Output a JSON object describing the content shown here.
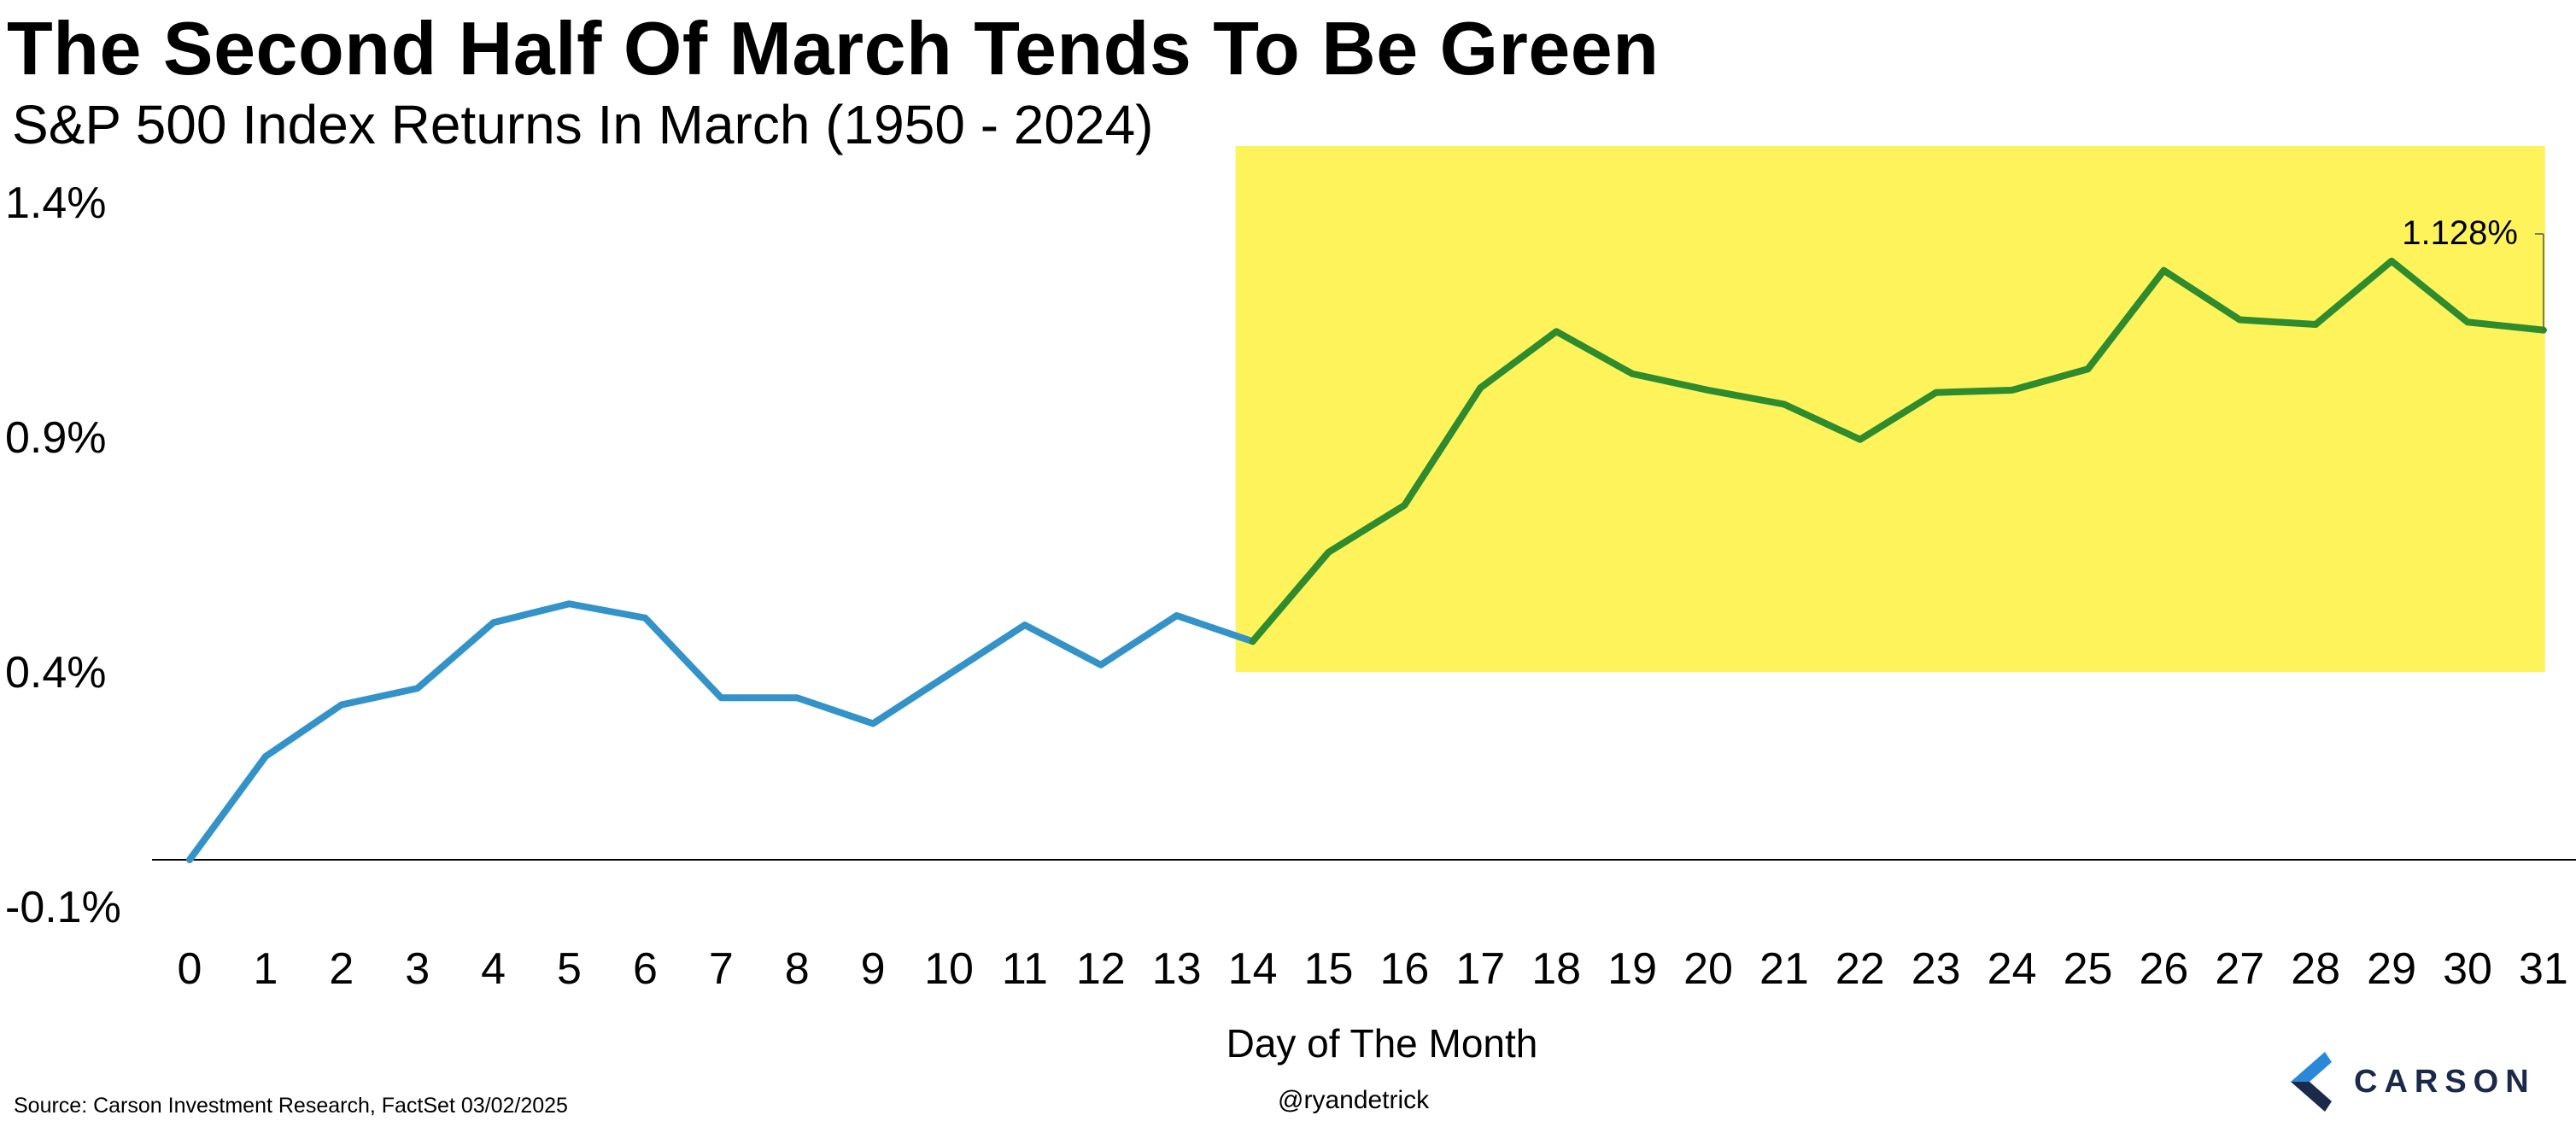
{
  "title": "The Second Half Of March Tends To Be Green",
  "subtitle": "S&P 500 Index Returns In March (1950 - 2024)",
  "source": "Source: Carson Investment Research, FactSet 03/02/2025",
  "handle": "@ryandetrick",
  "logo_text": "CARSON",
  "colors": {
    "first_half_line": "#3393c9",
    "second_half_line": "#2e8b2e",
    "highlight": "#fff35c",
    "logo_navy": "#1b2a4a",
    "logo_blue": "#2a88d8"
  },
  "chart_data": {
    "type": "line",
    "xlabel": "Day of The Month",
    "ylabel": "",
    "x": [
      0,
      1,
      2,
      3,
      4,
      5,
      6,
      7,
      8,
      9,
      10,
      11,
      12,
      13,
      14,
      15,
      16,
      17,
      18,
      19,
      20,
      21,
      22,
      23,
      24,
      25,
      26,
      27,
      28,
      29,
      30,
      31
    ],
    "x_ticks": [
      "0",
      "1",
      "2",
      "3",
      "4",
      "5",
      "6",
      "7",
      "8",
      "9",
      "10",
      "11",
      "12",
      "13",
      "14",
      "15",
      "16",
      "17",
      "18",
      "19",
      "20",
      "21",
      "22",
      "23",
      "24",
      "25",
      "26",
      "27",
      "28",
      "29",
      "30",
      "31"
    ],
    "series": [
      {
        "values": [
          0.0,
          0.22,
          0.33,
          0.365,
          0.505,
          0.545,
          0.515,
          0.345,
          0.345,
          0.29,
          0.395,
          0.5,
          0.415,
          0.52,
          0.465,
          0.655,
          0.755,
          1.005,
          1.125,
          1.035,
          1.0,
          0.97,
          0.895,
          0.995,
          1.0,
          1.045,
          1.255,
          1.15,
          1.14,
          1.275,
          1.145,
          1.128
        ]
      }
    ],
    "y_ticks": [
      "1.4%",
      "0.9%",
      "0.4%",
      "-0.1%"
    ],
    "y_tick_values": [
      1.4,
      0.9,
      0.4,
      -0.1
    ],
    "ylim": [
      -0.1,
      1.4
    ],
    "zero_line": 0,
    "highlight_region": {
      "x_from": 14,
      "x_to": 31,
      "y_from": 0.4,
      "y_to": 1.52
    },
    "color_change_at_x": 14,
    "annotation": {
      "x": 31,
      "y": 1.128,
      "text": "1.128%"
    },
    "grid": false,
    "legend": "none"
  }
}
